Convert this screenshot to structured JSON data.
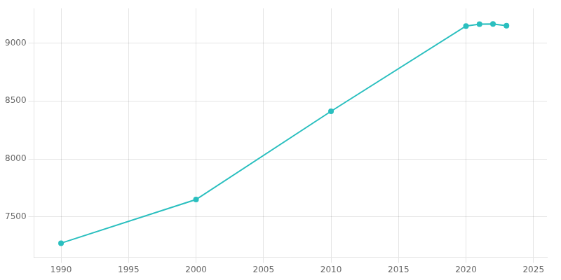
{
  "chart_data": {
    "type": "line",
    "x": [
      1990,
      2000,
      2010,
      2020,
      2021,
      2022,
      2023
    ],
    "values": [
      7272,
      7649,
      8411,
      9148,
      9164,
      9166,
      9150
    ],
    "color": "#2abfbf",
    "marker": "circle",
    "xlim": [
      1988,
      2026
    ],
    "ylim": [
      7150,
      9300
    ],
    "xticks": [
      1990,
      1995,
      2000,
      2005,
      2010,
      2015,
      2020,
      2025
    ],
    "yticks": [
      7500,
      8000,
      8500,
      9000
    ],
    "grid": true
  }
}
